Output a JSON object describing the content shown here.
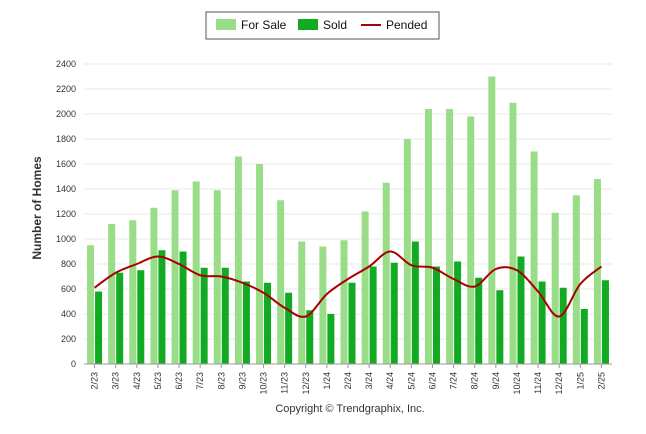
{
  "chart_data": {
    "type": "bar",
    "categories": [
      "2/23",
      "3/23",
      "4/23",
      "5/23",
      "6/23",
      "7/23",
      "8/23",
      "9/23",
      "10/23",
      "11/23",
      "12/23",
      "1/24",
      "2/24",
      "3/24",
      "4/24",
      "5/24",
      "6/24",
      "7/24",
      "8/24",
      "9/24",
      "10/24",
      "11/24",
      "12/24",
      "1/25",
      "2/25"
    ],
    "series": [
      {
        "name": "For Sale",
        "kind": "bar",
        "color": "#99dd88",
        "values": [
          950,
          1120,
          1150,
          1250,
          1390,
          1460,
          1390,
          1660,
          1600,
          1310,
          980,
          940,
          990,
          1220,
          1450,
          1800,
          2040,
          2040,
          1980,
          2300,
          2090,
          1700,
          1210,
          1350,
          1480
        ]
      },
      {
        "name": "Sold",
        "kind": "bar",
        "color": "#11aa22",
        "values": [
          580,
          730,
          750,
          910,
          900,
          770,
          770,
          660,
          650,
          570,
          430,
          400,
          650,
          780,
          810,
          980,
          780,
          820,
          690,
          590,
          860,
          660,
          610,
          440,
          670
        ]
      },
      {
        "name": "Pended",
        "kind": "line",
        "color": "#aa0000",
        "values": [
          610,
          730,
          800,
          860,
          800,
          710,
          700,
          650,
          570,
          450,
          380,
          560,
          680,
          780,
          900,
          790,
          770,
          680,
          620,
          760,
          750,
          580,
          380,
          640,
          780
        ]
      }
    ],
    "ylabel": "Number of Homes",
    "ylim": [
      0,
      2400
    ],
    "yticks": [
      0,
      200,
      400,
      600,
      800,
      1000,
      1200,
      1400,
      1600,
      1800,
      2000,
      2200,
      2400
    ],
    "grid": true,
    "legend": "top-center",
    "footer": "Copyright © Trendgraphix, Inc."
  }
}
